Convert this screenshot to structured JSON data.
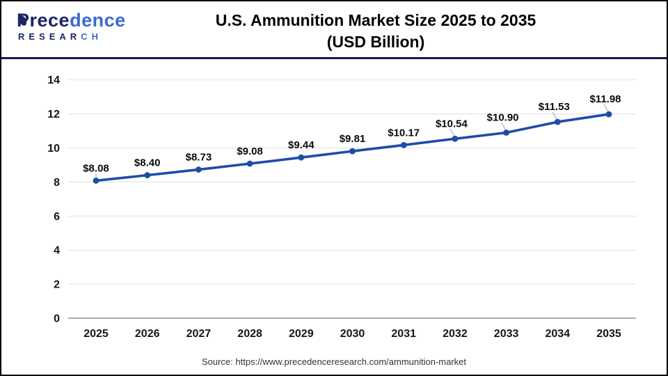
{
  "header": {
    "logo": {
      "name_part1": "Prece",
      "name_part2": "dence",
      "sub_part1": "RESEAR",
      "sub_part2": "CH"
    },
    "title_line1": "U.S. Ammunition Market Size 2025 to 2035",
    "title_line2": "(USD Billion)"
  },
  "chart_data": {
    "type": "line",
    "title": "U.S. Ammunition Market Size 2025 to 2035 (USD Billion)",
    "categories": [
      "2025",
      "2026",
      "2027",
      "2028",
      "2029",
      "2030",
      "2031",
      "2032",
      "2033",
      "2034",
      "2035"
    ],
    "series": [
      {
        "name": "U.S. Ammunition Market Size (USD Billion)",
        "values": [
          8.08,
          8.4,
          8.73,
          9.08,
          9.44,
          9.81,
          10.17,
          10.54,
          10.9,
          11.53,
          11.98
        ]
      }
    ],
    "point_labels": [
      "$8.08",
      "$8.40",
      "$8.73",
      "$9.08",
      "$9.44",
      "$9.81",
      "$10.17",
      "$10.54",
      "$10.90",
      "$11.53",
      "$11.98"
    ],
    "xlabel": "",
    "ylabel": "",
    "ylim": [
      0,
      14
    ],
    "ytick_step": 2,
    "grid": true,
    "legend": "none",
    "line_color": "#1d4ca8",
    "gridline_color": "#e4e4e4",
    "axis_line_color": "#a9a9a9",
    "leader_line_color": "#9fb5d9"
  },
  "footer": {
    "source": "Source: https://www.precedenceresearch.com/ammunition-market"
  }
}
